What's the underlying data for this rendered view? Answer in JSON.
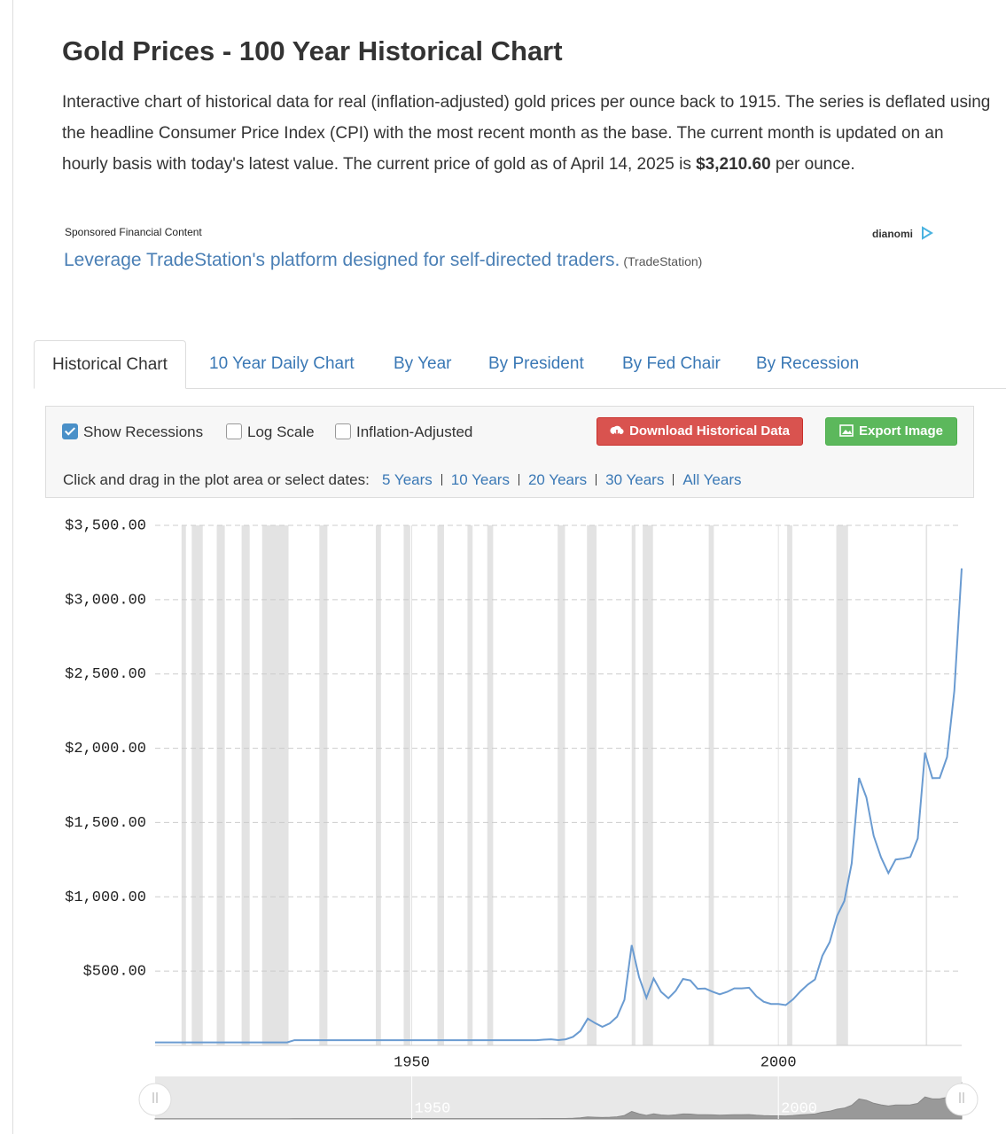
{
  "header": {
    "title": "Gold Prices - 100 Year Historical Chart",
    "description_before": "Interactive chart of historical data for real (inflation-adjusted) gold prices per ounce back to 1915. The series is deflated using the headline Consumer Price Index (CPI) with the most recent month as the base. The current month is updated on an hourly basis with today's latest value. The current price of gold as of April 14, 2025 is",
    "price": "$3,210.60",
    "description_after": "per ounce."
  },
  "ad": {
    "label": "Sponsored Financial Content",
    "provider": "dianomi",
    "link": "Leverage TradeStation's platform designed for self-directed traders.",
    "source": "(TradeStation)"
  },
  "tabs": [
    "Historical Chart",
    "10 Year Daily Chart",
    "By Year",
    "By President",
    "By Fed Chair",
    "By Recession"
  ],
  "controls": {
    "options": [
      {
        "label": "Show Recessions",
        "checked": true
      },
      {
        "label": "Log Scale",
        "checked": false
      },
      {
        "label": "Inflation-Adjusted",
        "checked": false
      }
    ],
    "download": "Download Historical Data",
    "export": "Export Image",
    "range_prompt": "Click and drag in the plot area or select dates:",
    "ranges": [
      "5 Years",
      "10 Years",
      "20 Years",
      "30 Years",
      "All Years"
    ]
  },
  "chart_data": {
    "type": "line",
    "log_scale": false,
    "grid": true,
    "show_recessions": true,
    "recession_color": "#e3e3e3",
    "x": [
      1915,
      1933,
      1934,
      1967,
      1968,
      1969,
      1970,
      1971,
      1972,
      1973,
      1974,
      1975,
      1976,
      1977,
      1978,
      1979,
      1980,
      1981,
      1982,
      1983,
      1984,
      1985,
      1986,
      1987,
      1988,
      1989,
      1990,
      1991,
      1992,
      1993,
      1994,
      1995,
      1996,
      1997,
      1998,
      1999,
      2000,
      2001,
      2002,
      2003,
      2004,
      2005,
      2006,
      2007,
      2008,
      2009,
      2010,
      2011,
      2012,
      2013,
      2014,
      2015,
      2016,
      2017,
      2018,
      2019,
      2020,
      2021,
      2022,
      2023,
      2024,
      2025
    ],
    "series": [
      {
        "name": "Gold Price",
        "color": "#6a9bd1",
        "values": [
          20,
          20,
          35,
          35,
          39,
          41,
          36,
          41,
          58,
          97,
          180,
          150,
          125,
          148,
          193,
          307,
          675,
          460,
          320,
          450,
          361,
          317,
          368,
          447,
          437,
          381,
          383,
          362,
          344,
          360,
          384,
          384,
          388,
          331,
          294,
          279,
          279,
          271,
          310,
          363,
          409,
          444,
          603,
          695,
          872,
          972,
          1225,
          1800,
          1669,
          1411,
          1266,
          1160,
          1251,
          1257,
          1268,
          1393,
          1970,
          1799,
          1800,
          1941,
          2386,
          3210
        ]
      }
    ],
    "recessions": [
      [
        1918.6,
        1919.2
      ],
      [
        1920.0,
        1921.5
      ],
      [
        1923.4,
        1924.5
      ],
      [
        1926.8,
        1927.9
      ],
      [
        1929.6,
        1933.2
      ],
      [
        1937.4,
        1938.5
      ],
      [
        1945.1,
        1945.8
      ],
      [
        1948.9,
        1949.8
      ],
      [
        1953.5,
        1954.4
      ],
      [
        1957.6,
        1958.3
      ],
      [
        1960.3,
        1961.1
      ],
      [
        1969.9,
        1970.9
      ],
      [
        1973.9,
        1975.2
      ],
      [
        1980.0,
        1980.5
      ],
      [
        1981.5,
        1982.9
      ],
      [
        1990.5,
        1991.2
      ],
      [
        2001.2,
        2001.9
      ],
      [
        2007.9,
        2009.5
      ],
      [
        2020.1,
        2020.3
      ]
    ],
    "xlim": [
      1915,
      2025
    ],
    "xticks": [
      1950,
      2000
    ],
    "ylim": [
      0,
      3500
    ],
    "yticks": [
      {
        "value": 500,
        "label": "$500.00"
      },
      {
        "value": 1000,
        "label": "$1,000.00"
      },
      {
        "value": 1500,
        "label": "$1,500.00"
      },
      {
        "value": 2000,
        "label": "$2,000.00"
      },
      {
        "value": 2500,
        "label": "$2,500.00"
      },
      {
        "value": 3000,
        "label": "$3,000.00"
      },
      {
        "value": 3500,
        "label": "$3,500.00"
      }
    ]
  }
}
